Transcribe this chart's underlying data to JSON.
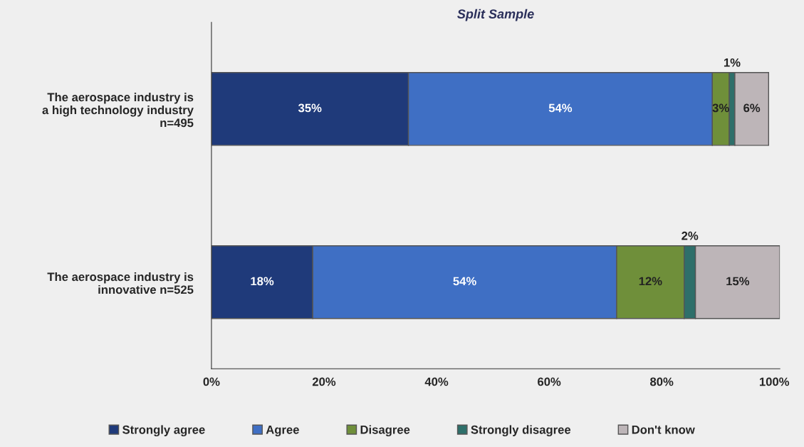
{
  "chart_data": {
    "type": "bar",
    "orientation": "horizontal",
    "stacked": true,
    "title": "Split Sample",
    "categories": [
      "The aerospace industry is\na high technology industry\nn=495",
      "The aerospace industry is\ninnovative n=525"
    ],
    "series": [
      {
        "name": "Strongly agree",
        "color": "#1f3a7a",
        "values": [
          35,
          18
        ],
        "value_labels": [
          "35%",
          "18%"
        ]
      },
      {
        "name": "Agree",
        "color": "#3f6fc4",
        "values": [
          54,
          54
        ],
        "value_labels": [
          "54%",
          "54%"
        ]
      },
      {
        "name": "Disagree",
        "color": "#6f8f3a",
        "values": [
          3,
          12
        ],
        "value_labels": [
          "3%",
          "12%"
        ]
      },
      {
        "name": "Strongly disagree",
        "color": "#2e6f6a",
        "values": [
          1,
          2
        ],
        "value_labels": [
          "1%",
          "2%"
        ]
      },
      {
        "name": "Don't know",
        "color": "#bdb5b8",
        "values": [
          6,
          15
        ],
        "value_labels": [
          "6%",
          "15%"
        ]
      }
    ],
    "xlim": [
      0,
      101
    ],
    "xticks": [
      {
        "value": 0,
        "label": "0%"
      },
      {
        "value": 20,
        "label": "20%"
      },
      {
        "value": 40,
        "label": "40%"
      },
      {
        "value": 60,
        "label": "60%"
      },
      {
        "value": 80,
        "label": "80%"
      },
      {
        "value": 100,
        "label": "100%"
      }
    ],
    "grid": false,
    "legend": "bottom"
  }
}
